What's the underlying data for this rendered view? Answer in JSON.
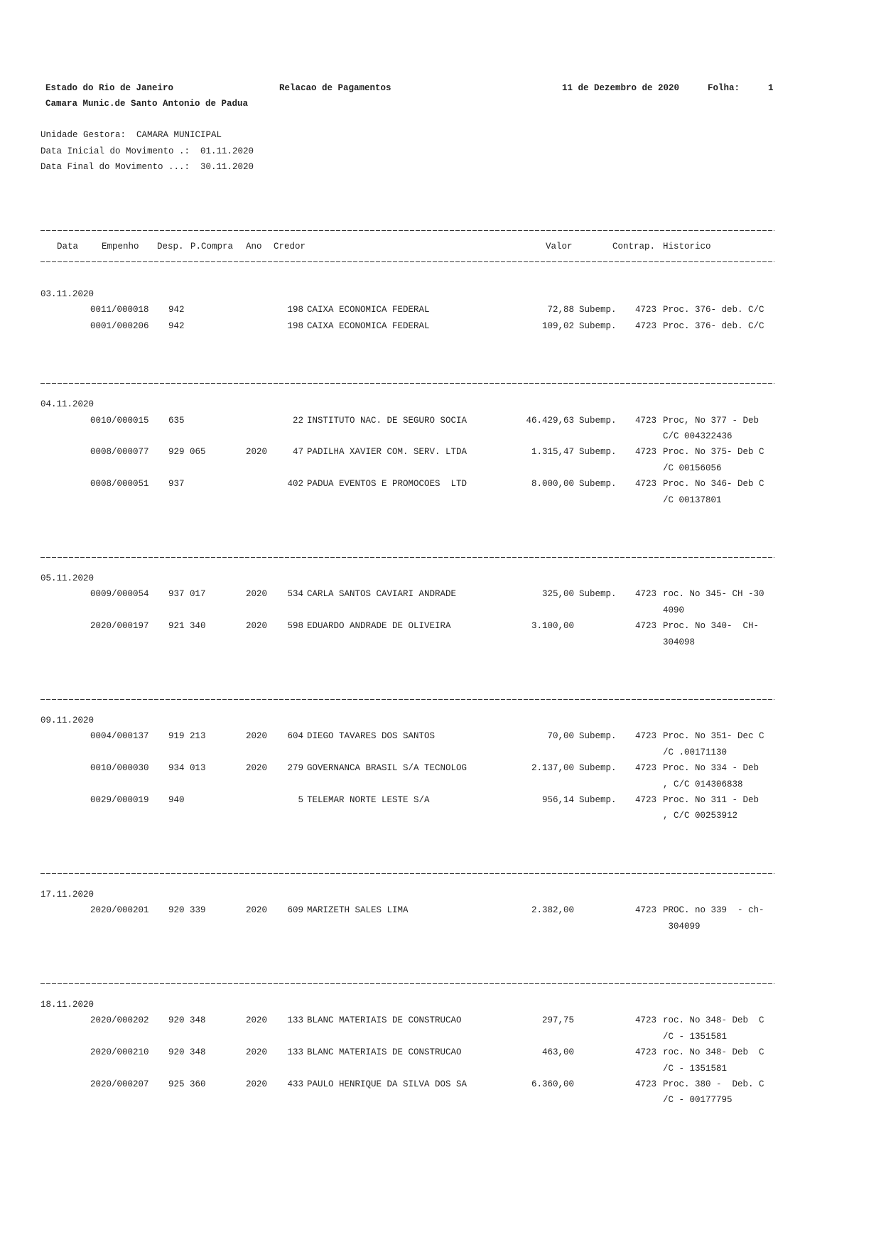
{
  "header": {
    "state": "Estado do Rio de Janeiro",
    "title": "Relacao de Pagamentos",
    "date": "11 de Dezembro de 2020",
    "folha_label": "Folha:",
    "folha": "1",
    "entity": "Camara Munic.de Santo Antonio de Padua"
  },
  "info": {
    "unidade": "Unidade Gestora:  CAMARA MUNICIPAL",
    "data_inicial": "Data Inicial do Movimento .:  01.11.2020",
    "data_final": "Data Final do Movimento ...:  30.11.2020"
  },
  "columns": {
    "data": "Data",
    "empenho": "Empenho",
    "desp": "Desp.",
    "pcompra": "P.Compra",
    "ano": "Ano",
    "credor": "Credor",
    "valor": "Valor",
    "contrap": "Contrap.",
    "historico": "Historico"
  },
  "groups": [
    {
      "date": "03.11.2020",
      "rows": [
        {
          "empenho": "0011/000018",
          "desp": "942",
          "ano": "",
          "cod": "198",
          "credor": "CAIXA ECONOMICA FEDERAL",
          "valor": "72,88",
          "sub": "Subemp.",
          "contrap": "4723",
          "hist": [
            "Proc. 376- deb. C/C"
          ]
        },
        {
          "empenho": "0001/000206",
          "desp": "942",
          "ano": "",
          "cod": "198",
          "credor": "CAIXA ECONOMICA FEDERAL",
          "valor": "109,02",
          "sub": "Subemp.",
          "contrap": "4723",
          "hist": [
            "Proc. 376- deb. C/C"
          ]
        }
      ]
    },
    {
      "date": "04.11.2020",
      "rows": [
        {
          "empenho": "0010/000015",
          "desp": "635",
          "ano": "",
          "cod": "22",
          "credor": "INSTITUTO NAC. DE SEGURO SOCIA",
          "valor": "46.429,63",
          "sub": "Subemp.",
          "contrap": "4723",
          "hist": [
            "Proc, No 377 - Deb",
            "C/C 004322436"
          ]
        },
        {
          "empenho": "0008/000077",
          "desp": "929 065",
          "ano": "2020",
          "cod": "47",
          "credor": "PADILHA XAVIER COM. SERV. LTDA",
          "valor": "1.315,47",
          "sub": "Subemp.",
          "contrap": "4723",
          "hist": [
            "Proc. No 375- Deb C",
            "/C 00156056"
          ]
        },
        {
          "empenho": "0008/000051",
          "desp": "937",
          "ano": "",
          "cod": "402",
          "credor": "PADUA EVENTOS E PROMOCOES  LTD",
          "valor": "8.000,00",
          "sub": "Subemp.",
          "contrap": "4723",
          "hist": [
            "Proc. No 346- Deb C",
            "/C 00137801"
          ]
        }
      ]
    },
    {
      "date": "05.11.2020",
      "rows": [
        {
          "empenho": "0009/000054",
          "desp": "937 017",
          "ano": "2020",
          "cod": "534",
          "credor": "CARLA SANTOS CAVIARI ANDRADE",
          "valor": "325,00",
          "sub": "Subemp.",
          "contrap": "4723",
          "hist": [
            "roc. No 345- CH -30",
            "4090"
          ]
        },
        {
          "empenho": "2020/000197",
          "desp": "921 340",
          "ano": "2020",
          "cod": "598",
          "credor": "EDUARDO ANDRADE DE OLIVEIRA",
          "valor": "3.100,00",
          "sub": "",
          "contrap": "4723",
          "hist": [
            "Proc. No 340-  CH-",
            "304098"
          ]
        }
      ]
    },
    {
      "date": "09.11.2020",
      "rows": [
        {
          "empenho": "0004/000137",
          "desp": "919 213",
          "ano": "2020",
          "cod": "604",
          "credor": "DIEGO TAVARES DOS SANTOS",
          "valor": "70,00",
          "sub": "Subemp.",
          "contrap": "4723",
          "hist": [
            "Proc. No 351- Dec C",
            "/C .00171130"
          ]
        },
        {
          "empenho": "0010/000030",
          "desp": "934 013",
          "ano": "2020",
          "cod": "279",
          "credor": "GOVERNANCA BRASIL S/A TECNOLOG",
          "valor": "2.137,00",
          "sub": "Subemp.",
          "contrap": "4723",
          "hist": [
            "Proc. No 334 - Deb",
            ", C/C 014306838"
          ]
        },
        {
          "empenho": "0029/000019",
          "desp": "940",
          "ano": "",
          "cod": "5",
          "credor": "TELEMAR NORTE LESTE S/A",
          "valor": "956,14",
          "sub": "Subemp.",
          "contrap": "4723",
          "hist": [
            "Proc. No 311 - Deb",
            ", C/C 00253912"
          ]
        }
      ]
    },
    {
      "date": "17.11.2020",
      "rows": [
        {
          "empenho": "2020/000201",
          "desp": "920 339",
          "ano": "2020",
          "cod": "609",
          "credor": "MARIZETH SALES LIMA",
          "valor": "2.382,00",
          "sub": "",
          "contrap": "4723",
          "hist": [
            "PROC. no 339  - ch-",
            " 304099"
          ]
        }
      ]
    },
    {
      "date": "18.11.2020",
      "rows": [
        {
          "empenho": "2020/000202",
          "desp": "920 348",
          "ano": "2020",
          "cod": "133",
          "credor": "BLANC MATERIAIS DE CONSTRUCAO",
          "valor": "297,75",
          "sub": "",
          "contrap": "4723",
          "hist": [
            "roc. No 348- Deb  C",
            "/C - 1351581"
          ]
        },
        {
          "empenho": "2020/000210",
          "desp": "920 348",
          "ano": "2020",
          "cod": "133",
          "credor": "BLANC MATERIAIS DE CONSTRUCAO",
          "valor": "463,00",
          "sub": "",
          "contrap": "4723",
          "hist": [
            "roc. No 348- Deb  C",
            "/C - 1351581"
          ]
        },
        {
          "empenho": "2020/000207",
          "desp": "925 360",
          "ano": "2020",
          "cod": "433",
          "credor": "PAULO HENRIQUE DA SILVA DOS SA",
          "valor": "6.360,00",
          "sub": "",
          "contrap": "4723",
          "hist": [
            "Proc. 380 -  Deb. C",
            "/C - 00177795"
          ]
        }
      ]
    }
  ]
}
